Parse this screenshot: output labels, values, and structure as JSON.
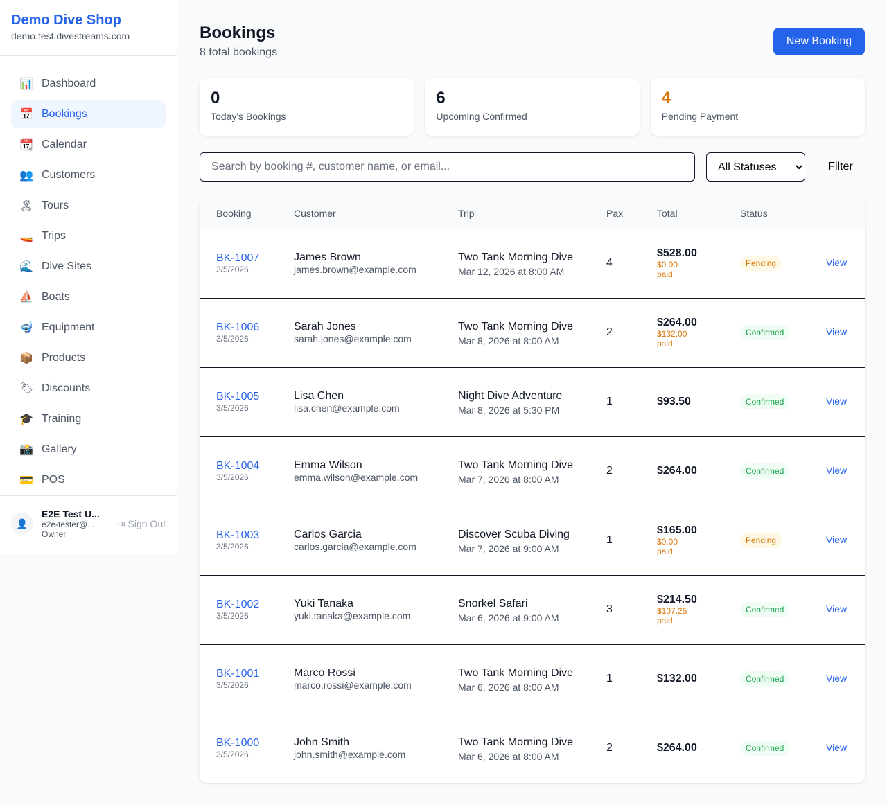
{
  "sidebar": {
    "shop_name": "Demo Dive Shop",
    "domain": "demo.test.divestreams.com",
    "items": [
      {
        "label": "Dashboard",
        "icon": "📊",
        "icon_name": "chart-icon",
        "active": false
      },
      {
        "label": "Bookings",
        "icon": "📅",
        "icon_name": "calendar-date-icon",
        "active": true
      },
      {
        "label": "Calendar",
        "icon": "📆",
        "icon_name": "calendar-icon",
        "active": false
      },
      {
        "label": "Customers",
        "icon": "👥",
        "icon_name": "users-icon",
        "active": false
      },
      {
        "label": "Tours",
        "icon": "🏝",
        "icon_name": "island-icon",
        "active": false
      },
      {
        "label": "Trips",
        "icon": "🚤",
        "icon_name": "boat-icon",
        "active": false
      },
      {
        "label": "Dive Sites",
        "icon": "🌊",
        "icon_name": "wave-icon",
        "active": false
      },
      {
        "label": "Boats",
        "icon": "⛵",
        "icon_name": "sailboat-icon",
        "active": false
      },
      {
        "label": "Equipment",
        "icon": "🤿",
        "icon_name": "mask-icon",
        "active": false
      },
      {
        "label": "Products",
        "icon": "📦",
        "icon_name": "package-icon",
        "active": false
      },
      {
        "label": "Discounts",
        "icon": "🏷",
        "icon_name": "tag-icon",
        "active": false
      },
      {
        "label": "Training",
        "icon": "🎓",
        "icon_name": "graduation-icon",
        "active": false
      },
      {
        "label": "Gallery",
        "icon": "📸",
        "icon_name": "camera-icon",
        "active": false
      },
      {
        "label": "POS",
        "icon": "💳",
        "icon_name": "card-icon",
        "active": false
      }
    ],
    "user": {
      "name": "E2E Test U...",
      "email": "e2e-tester@...",
      "role": "Owner",
      "sign_out": "Sign Out"
    }
  },
  "header": {
    "title": "Bookings",
    "subtitle": "8 total bookings",
    "new_button": "New Booking"
  },
  "stats": [
    {
      "value": "0",
      "label": "Today's Bookings",
      "color": "#111827"
    },
    {
      "value": "6",
      "label": "Upcoming Confirmed",
      "color": "#111827"
    },
    {
      "value": "4",
      "label": "Pending Payment",
      "color": "#d97706"
    }
  ],
  "filters": {
    "search_placeholder": "Search by booking #, customer name, or email...",
    "search_value": "",
    "status_selected": "All Statuses",
    "filter_label": "Filter"
  },
  "table": {
    "headers": [
      "Booking",
      "Customer",
      "Trip",
      "Pax",
      "Total",
      "Status",
      ""
    ],
    "rows": [
      {
        "id": "BK-1007",
        "date": "3/5/2026",
        "customer": "James Brown",
        "email": "james.brown@example.com",
        "trip": "Two Tank Morning Dive",
        "trip_time": "Mar 12, 2026 at 8:00 AM",
        "pax": "4",
        "total": "$528.00",
        "paid": "$0.00 paid",
        "status": "Pending",
        "action": "View"
      },
      {
        "id": "BK-1006",
        "date": "3/5/2026",
        "customer": "Sarah Jones",
        "email": "sarah.jones@example.com",
        "trip": "Two Tank Morning Dive",
        "trip_time": "Mar 8, 2026 at 8:00 AM",
        "pax": "2",
        "total": "$264.00",
        "paid": "$132.00 paid",
        "status": "Confirmed",
        "action": "View"
      },
      {
        "id": "BK-1005",
        "date": "3/5/2026",
        "customer": "Lisa Chen",
        "email": "lisa.chen@example.com",
        "trip": "Night Dive Adventure",
        "trip_time": "Mar 8, 2026 at 5:30 PM",
        "pax": "1",
        "total": "$93.50",
        "paid": "",
        "status": "Confirmed",
        "action": "View"
      },
      {
        "id": "BK-1004",
        "date": "3/5/2026",
        "customer": "Emma Wilson",
        "email": "emma.wilson@example.com",
        "trip": "Two Tank Morning Dive",
        "trip_time": "Mar 7, 2026 at 8:00 AM",
        "pax": "2",
        "total": "$264.00",
        "paid": "",
        "status": "Confirmed",
        "action": "View"
      },
      {
        "id": "BK-1003",
        "date": "3/5/2026",
        "customer": "Carlos Garcia",
        "email": "carlos.garcia@example.com",
        "trip": "Discover Scuba Diving",
        "trip_time": "Mar 7, 2026 at 9:00 AM",
        "pax": "1",
        "total": "$165.00",
        "paid": "$0.00 paid",
        "status": "Pending",
        "action": "View"
      },
      {
        "id": "BK-1002",
        "date": "3/5/2026",
        "customer": "Yuki Tanaka",
        "email": "yuki.tanaka@example.com",
        "trip": "Snorkel Safari",
        "trip_time": "Mar 6, 2026 at 9:00 AM",
        "pax": "3",
        "total": "$214.50",
        "paid": "$107.25 paid",
        "status": "Confirmed",
        "action": "View"
      },
      {
        "id": "BK-1001",
        "date": "3/5/2026",
        "customer": "Marco Rossi",
        "email": "marco.rossi@example.com",
        "trip": "Two Tank Morning Dive",
        "trip_time": "Mar 6, 2026 at 8:00 AM",
        "pax": "1",
        "total": "$132.00",
        "paid": "",
        "status": "Confirmed",
        "action": "View"
      },
      {
        "id": "BK-1000",
        "date": "3/5/2026",
        "customer": "John Smith",
        "email": "john.smith@example.com",
        "trip": "Two Tank Morning Dive",
        "trip_time": "Mar 6, 2026 at 8:00 AM",
        "pax": "2",
        "total": "$264.00",
        "paid": "",
        "status": "Confirmed",
        "action": "View"
      }
    ]
  }
}
